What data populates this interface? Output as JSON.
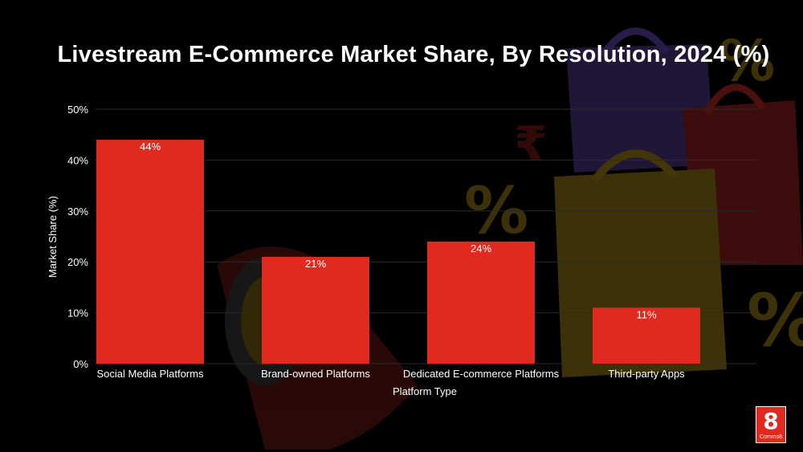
{
  "chart_data": {
    "type": "bar",
    "title": "Livestream E-Commerce Market Share, By Resolution, 2024 (%)",
    "xlabel": "Platform Type",
    "ylabel": "Market Share (%)",
    "categories": [
      "Social Media Platforms",
      "Brand-owned Platforms",
      "Dedicated E-commerce Platforms",
      "Third-party Apps"
    ],
    "values": [
      44,
      21,
      24,
      11
    ],
    "data_labels": [
      "44%",
      "21%",
      "24%",
      "11%"
    ],
    "ylim": [
      0,
      50
    ],
    "yticks": [
      0,
      10,
      20,
      30,
      40,
      50
    ],
    "ytick_labels": [
      "0%",
      "10%",
      "20%",
      "30%",
      "40%",
      "50%"
    ],
    "grid": true,
    "bar_color": "#e02a1f"
  },
  "brand": {
    "logo_digit": "8",
    "logo_text": "Comms8"
  },
  "colors": {
    "background": "#000000",
    "text": "#ffffff",
    "gridline": "#2a2a2a"
  }
}
